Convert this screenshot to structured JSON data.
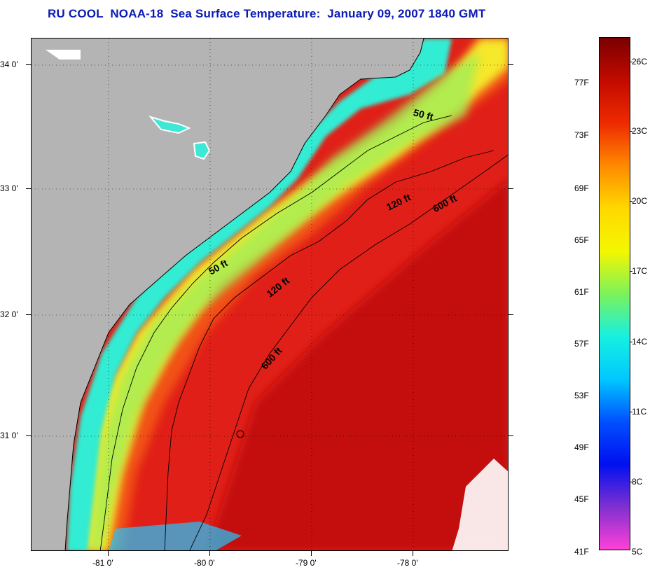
{
  "title": "RU COOL  NOAA-18  Sea Surface Temperature:  January 09, 2007 1840 GMT",
  "map": {
    "lat_labels": [
      "34 0'",
      "33 0'",
      "32 0'",
      "31 0'"
    ],
    "lon_labels": [
      "-81 0'",
      "-80 0'",
      "-79 0'",
      "-78 0'"
    ],
    "contours": [
      {
        "label": "50 ft"
      },
      {
        "label": "50 ft"
      },
      {
        "label": "120 ft"
      },
      {
        "label": "120 ft"
      },
      {
        "label": "600 ft"
      },
      {
        "label": "600 ft"
      }
    ],
    "colors": {
      "land": "#b4b4b4",
      "cold_shelf": "#2ff0d2",
      "mid_shelf": "#f4ee2a",
      "warm_offshore": "#e8201a",
      "gulf_stream": "#c8100c"
    }
  },
  "colorbar": {
    "fahrenheit_labels": [
      "77F",
      "73F",
      "69F",
      "65F",
      "61F",
      "57F",
      "53F",
      "49F",
      "45F",
      "41F"
    ],
    "celsius_labels": [
      "26C",
      "23C",
      "20C",
      "17C",
      "14C",
      "11C",
      "8C",
      "5C"
    ],
    "colors": [
      "#7a0000",
      "#c20a00",
      "#ee2a00",
      "#ff8a00",
      "#ffd800",
      "#f4f700",
      "#7cf25a",
      "#18f0e0",
      "#00c8ff",
      "#0050ff",
      "#0010f0",
      "#8030d0",
      "#ff40d8"
    ]
  }
}
